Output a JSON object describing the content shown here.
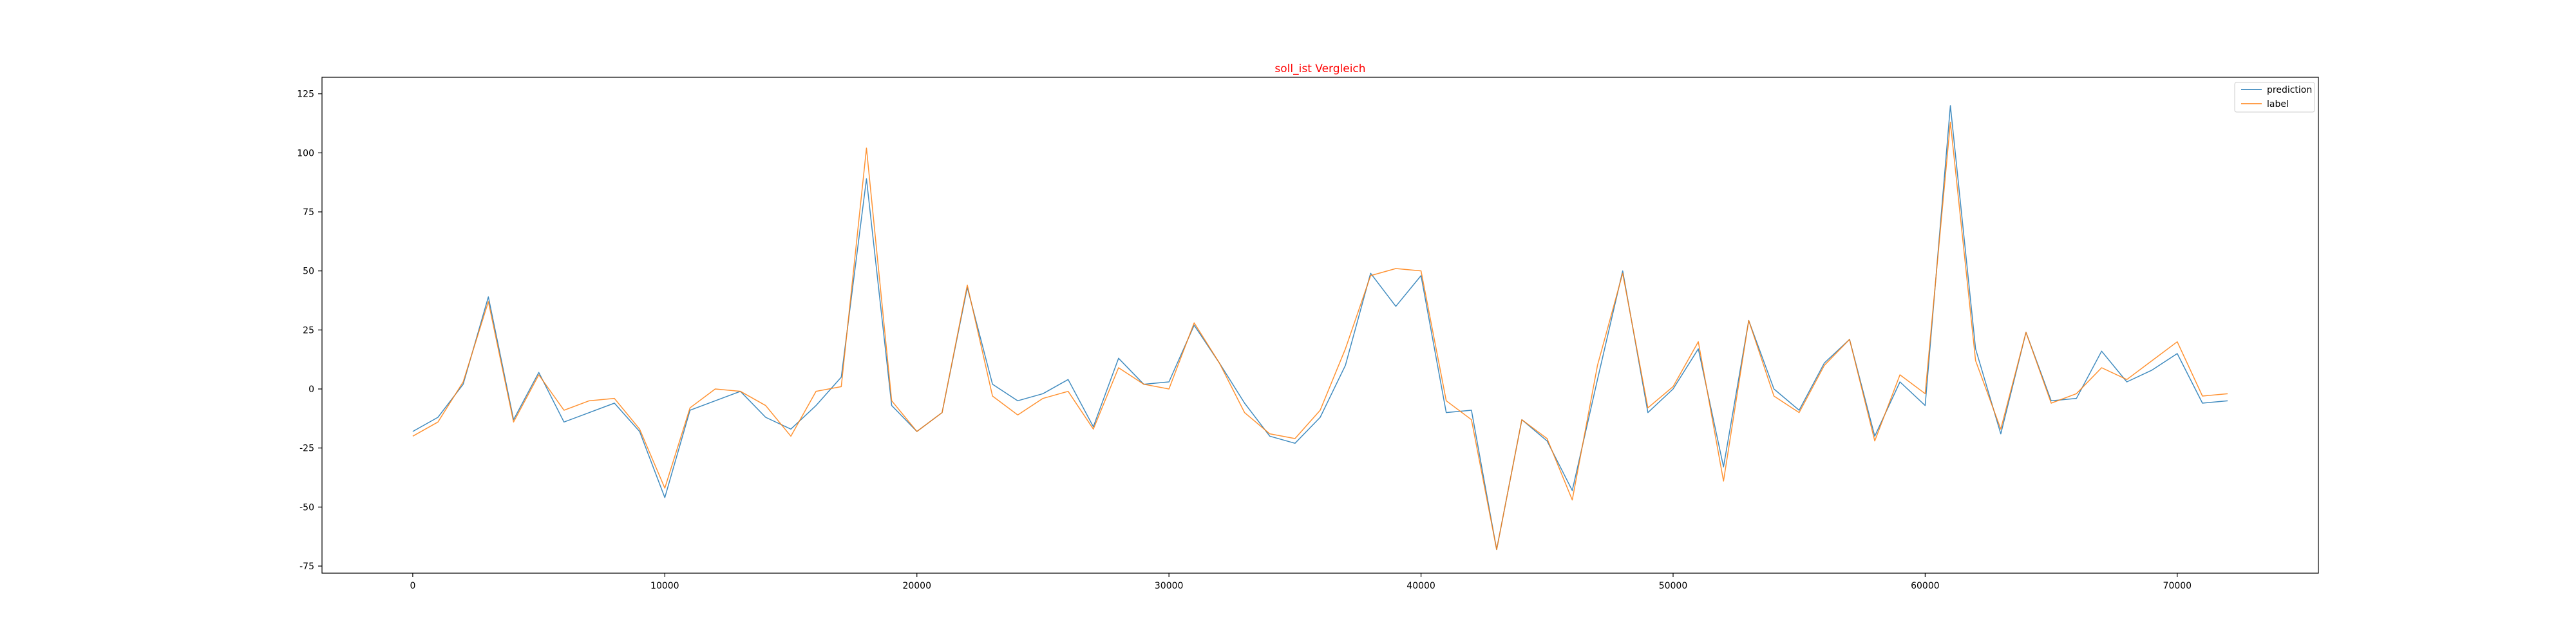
{
  "chart_data": {
    "type": "line",
    "title": "soll_ist Vergleich",
    "title_color": "#ff0000",
    "xlabel": "",
    "ylabel": "",
    "xlim": [
      -3600,
      75600
    ],
    "ylim": [
      -78,
      132
    ],
    "x_ticks": [
      0,
      10000,
      20000,
      30000,
      40000,
      50000,
      60000,
      70000
    ],
    "y_ticks": [
      -75,
      -50,
      -25,
      0,
      25,
      50,
      75,
      100,
      125
    ],
    "grid": false,
    "legend_position": "top-right",
    "x": [
      0,
      1000,
      2000,
      3000,
      4000,
      5000,
      6000,
      7000,
      8000,
      9000,
      10000,
      11000,
      12000,
      13000,
      14000,
      15000,
      16000,
      17000,
      18000,
      19000,
      20000,
      21000,
      22000,
      23000,
      24000,
      25000,
      26000,
      27000,
      28000,
      29000,
      30000,
      31000,
      32000,
      33000,
      34000,
      35000,
      36000,
      37000,
      38000,
      39000,
      40000,
      41000,
      42000,
      43000,
      44000,
      45000,
      46000,
      47000,
      48000,
      49000,
      50000,
      51000,
      52000,
      53000,
      54000,
      55000,
      56000,
      57000,
      58000,
      59000,
      60000,
      61000,
      62000,
      63000,
      64000,
      65000,
      66000,
      67000,
      68000,
      69000,
      70000,
      71000,
      72000
    ],
    "series": [
      {
        "name": "prediction",
        "color": "#1f77b4",
        "values": [
          -18,
          -12,
          2,
          39,
          -13,
          7,
          -14,
          -10,
          -6,
          -18,
          -46,
          -9,
          -5,
          -1,
          -12,
          -17,
          -7,
          5,
          89,
          -7,
          -18,
          -10,
          43,
          2,
          -5,
          -2,
          4,
          -16,
          13,
          2,
          3,
          27,
          11,
          -6,
          -20,
          -23,
          -12,
          10,
          49,
          35,
          48,
          -10,
          -9,
          -68,
          -13,
          -22,
          -43,
          4,
          50,
          -10,
          0,
          17,
          -33,
          29,
          0,
          -9,
          11,
          21,
          -20,
          3,
          -7,
          120,
          17,
          -19,
          24,
          -5,
          -4,
          16,
          3,
          8,
          15,
          -6,
          -5
        ]
      },
      {
        "name": "label",
        "color": "#ff7f0e",
        "values": [
          -20,
          -14,
          3,
          37,
          -14,
          6,
          -9,
          -5,
          -4,
          -17,
          -42,
          -8,
          0,
          -1,
          -7,
          -20,
          -1,
          1,
          102,
          -5,
          -18,
          -10,
          44,
          -3,
          -11,
          -4,
          -1,
          -17,
          9,
          2,
          0,
          28,
          11,
          -10,
          -19,
          -21,
          -9,
          17,
          48,
          51,
          50,
          -5,
          -13,
          -68,
          -13,
          -21,
          -47,
          10,
          49,
          -8,
          1,
          20,
          -39,
          29,
          -3,
          -10,
          10,
          21,
          -22,
          6,
          -2,
          113,
          12,
          -17,
          24,
          -6,
          -2,
          9,
          4,
          12,
          20,
          -3,
          -2
        ]
      }
    ]
  }
}
